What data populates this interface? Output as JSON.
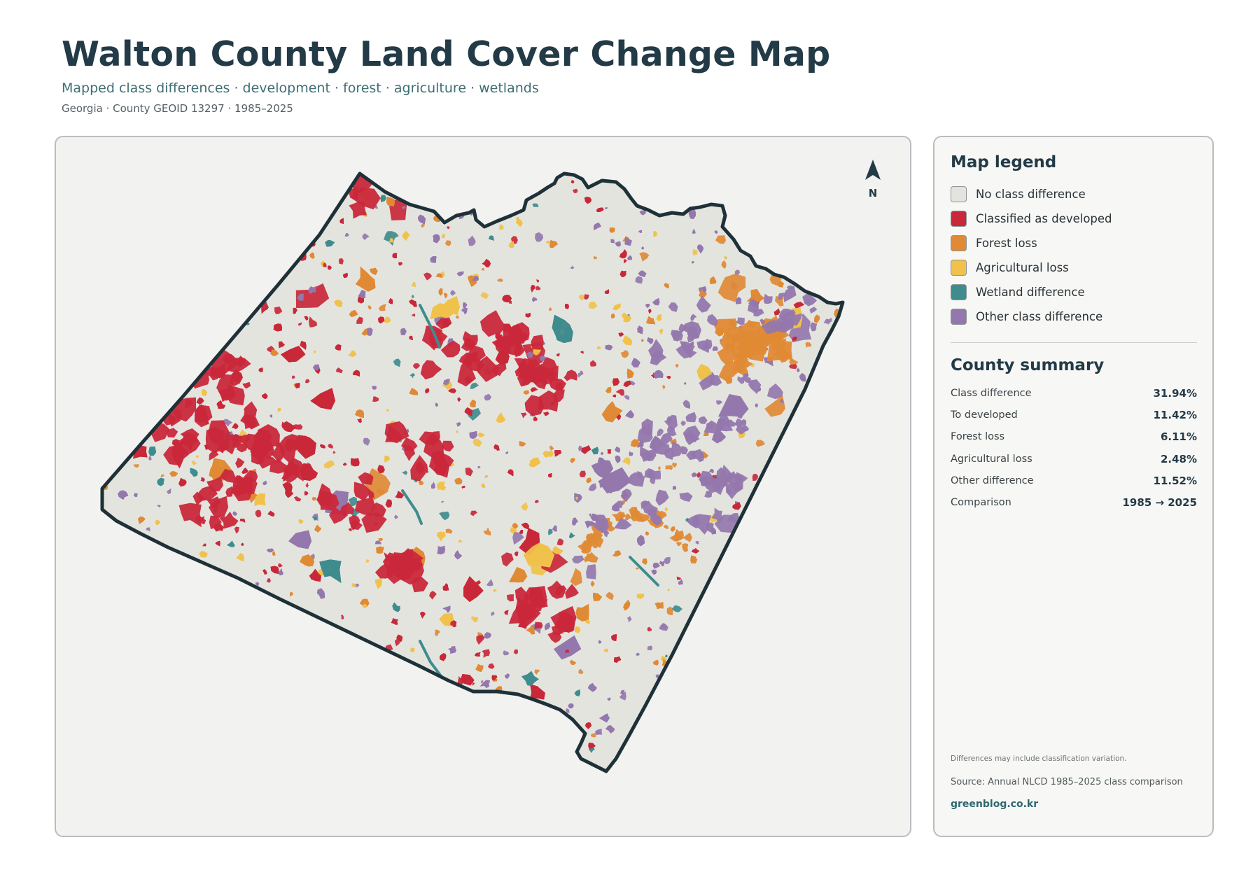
{
  "header": {
    "title": "Walton County Land Cover Change Map",
    "subtitle": "Mapped class differences · development · forest · agriculture · wetlands",
    "meta": "Georgia · County GEOID 13297 · 1985–2025"
  },
  "map": {
    "north_label": "N"
  },
  "legend": {
    "title": "Map legend",
    "items": [
      {
        "label": "No class difference",
        "color": "#e4e4df"
      },
      {
        "label": "Classified as developed",
        "color": "#c9283a"
      },
      {
        "label": "Forest loss",
        "color": "#e08a35"
      },
      {
        "label": "Agricultural loss",
        "color": "#f0c24b"
      },
      {
        "label": "Wetland difference",
        "color": "#3f8c8f"
      },
      {
        "label": "Other class difference",
        "color": "#9478ad"
      }
    ]
  },
  "summary": {
    "title": "County summary",
    "rows": [
      {
        "label": "Class difference",
        "value": "31.94%"
      },
      {
        "label": "To developed",
        "value": "11.42%"
      },
      {
        "label": "Forest loss",
        "value": "6.11%"
      },
      {
        "label": "Agricultural loss",
        "value": "2.48%"
      },
      {
        "label": "Other difference",
        "value": "11.52%"
      },
      {
        "label": "Comparison",
        "value": "1985 → 2025"
      }
    ]
  },
  "footer": {
    "note": "Differences may include classification variation.",
    "source": "Source: Annual NLCD 1985–2025 class comparison",
    "site": "greenblog.co.kr"
  }
}
